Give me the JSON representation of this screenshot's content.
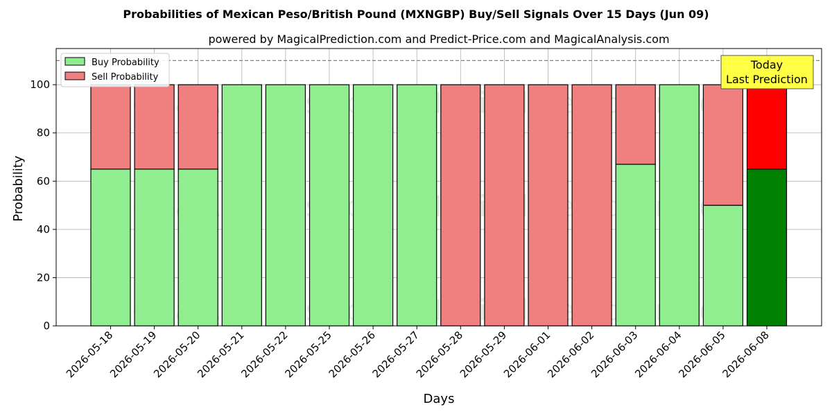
{
  "chart_data": {
    "type": "bar",
    "stacked": true,
    "title": "Probabilities of Mexican Peso/British Pound (MXNGBP) Buy/Sell Signals Over 15 Days (Jun 09)",
    "subtitle": "powered by MagicalPrediction.com and Predict-Price.com and MagicalAnalysis.com",
    "xlabel": "Days",
    "ylabel": "Probability",
    "ylim": [
      0,
      115
    ],
    "yticks": [
      0,
      20,
      40,
      60,
      80,
      100
    ],
    "ytick_labels": [
      "0",
      "20",
      "40",
      "60",
      "80",
      "100"
    ],
    "grid": true,
    "reference_line": 110,
    "legend_position": "top-left",
    "categories": [
      "2026-05-18",
      "2026-05-19",
      "2026-05-20",
      "2026-05-21",
      "2026-05-22",
      "2026-05-25",
      "2026-05-26",
      "2026-05-27",
      "2026-05-28",
      "2026-05-29",
      "2026-06-01",
      "2026-06-02",
      "2026-06-03",
      "2026-06-04",
      "2026-06-05",
      "2026-06-08"
    ],
    "series": [
      {
        "name": "Buy Probability",
        "color": "#90ee90",
        "highlight_color": "#008000",
        "values": [
          65,
          65,
          65,
          100,
          100,
          100,
          100,
          100,
          0,
          0,
          0,
          0,
          67,
          100,
          50,
          65
        ]
      },
      {
        "name": "Sell Probability",
        "color": "#f08080",
        "highlight_color": "#ff0000",
        "values": [
          35,
          35,
          35,
          0,
          0,
          0,
          0,
          0,
          100,
          100,
          100,
          100,
          33,
          0,
          50,
          35
        ]
      }
    ],
    "highlight_index": 15,
    "annotation": {
      "line1": "Today",
      "line2": "Last Prediction",
      "color": "#ffff44"
    },
    "watermarks": [
      "MagicalAnalysis.com",
      "MagicalPrediction.com"
    ]
  }
}
